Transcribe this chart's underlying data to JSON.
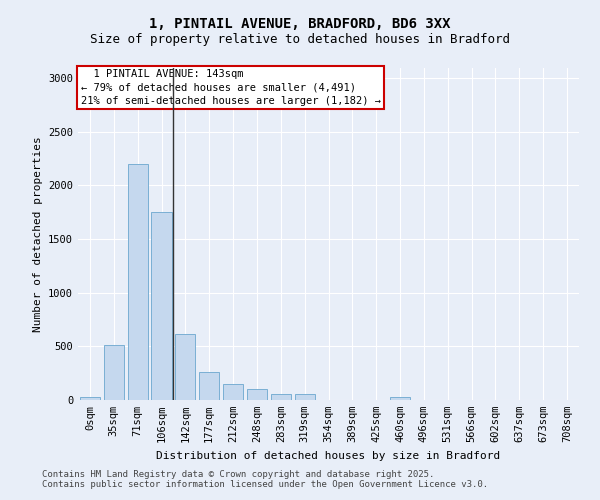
{
  "title_line1": "1, PINTAIL AVENUE, BRADFORD, BD6 3XX",
  "title_line2": "Size of property relative to detached houses in Bradford",
  "xlabel": "Distribution of detached houses by size in Bradford",
  "ylabel": "Number of detached properties",
  "bar_color": "#c5d8ee",
  "bar_edge_color": "#7aafd4",
  "categories": [
    "0sqm",
    "35sqm",
    "71sqm",
    "106sqm",
    "142sqm",
    "177sqm",
    "212sqm",
    "248sqm",
    "283sqm",
    "319sqm",
    "354sqm",
    "389sqm",
    "425sqm",
    "460sqm",
    "496sqm",
    "531sqm",
    "566sqm",
    "602sqm",
    "637sqm",
    "673sqm",
    "708sqm"
  ],
  "values": [
    30,
    510,
    2200,
    1750,
    620,
    260,
    150,
    100,
    60,
    55,
    0,
    0,
    0,
    30,
    0,
    0,
    0,
    0,
    0,
    0,
    0
  ],
  "annotation_line1": "  1 PINTAIL AVENUE: 143sqm",
  "annotation_line2": "← 79% of detached houses are smaller (4,491)",
  "annotation_line3": "21% of semi-detached houses are larger (1,182) →",
  "annotation_box_color": "#ffffff",
  "annotation_box_edge_color": "#cc0000",
  "vline_x_index": 3.5,
  "vline_color": "#333333",
  "ylim": [
    0,
    3100
  ],
  "yticks": [
    0,
    500,
    1000,
    1500,
    2000,
    2500,
    3000
  ],
  "footer_line1": "Contains HM Land Registry data © Crown copyright and database right 2025.",
  "footer_line2": "Contains public sector information licensed under the Open Government Licence v3.0.",
  "background_color": "#e8eef8",
  "plot_bg_color": "#e8eef8",
  "grid_color": "#ffffff",
  "title_fontsize": 10,
  "subtitle_fontsize": 9,
  "ylabel_fontsize": 8,
  "xlabel_fontsize": 8,
  "tick_fontsize": 7.5,
  "footer_fontsize": 6.5
}
